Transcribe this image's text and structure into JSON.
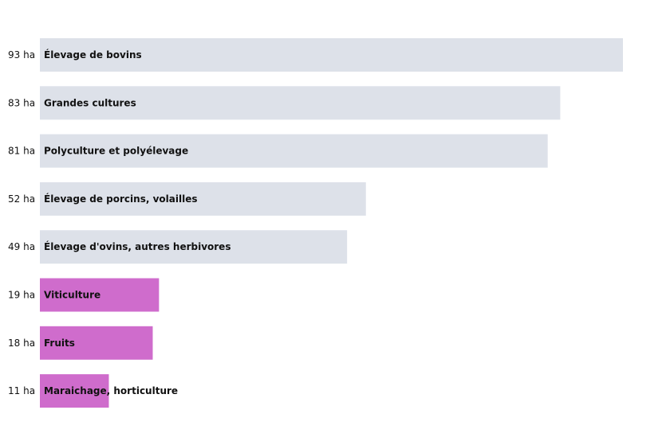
{
  "chart_data": {
    "type": "bar",
    "orientation": "horizontal",
    "unit": "ha",
    "categories": [
      "Élevage de bovins",
      "Grandes cultures",
      "Polyculture et polyélevage",
      "Élevage de porcins, volailles",
      "Élevage d'ovins, autres herbivores",
      "Viticulture",
      "Fruits",
      "Maraichage, horticulture"
    ],
    "values": [
      93,
      83,
      81,
      52,
      49,
      19,
      18,
      11
    ],
    "value_labels": [
      "93 ha",
      "83 ha",
      "81 ha",
      "52 ha",
      "49 ha",
      "19 ha",
      "18 ha",
      "11 ha"
    ],
    "bar_colors": [
      "#dde1e9",
      "#dde1e9",
      "#dde1e9",
      "#dde1e9",
      "#dde1e9",
      "#cf6ccc",
      "#cf6ccc",
      "#cf6ccc"
    ],
    "xlim": [
      0,
      93
    ],
    "grid": false,
    "legend": "none"
  }
}
